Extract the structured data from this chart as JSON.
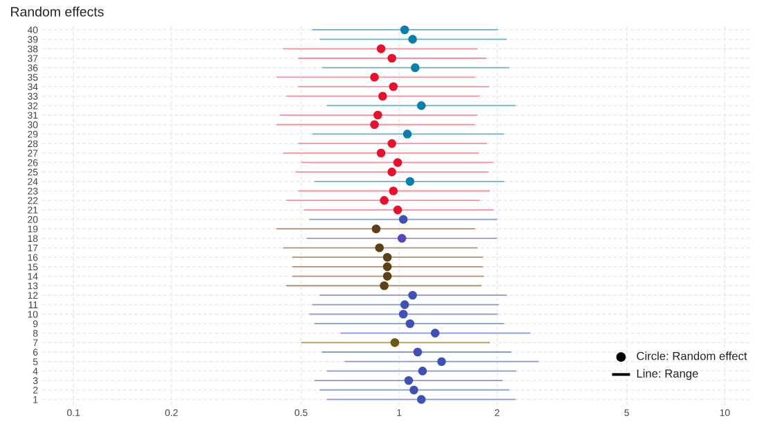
{
  "chart_data": {
    "type": "scatter",
    "title": "Random effects",
    "orientation": "horizontal",
    "log": "x",
    "grid": true,
    "annotations": [
      "Circle: Random effect",
      "Line: Range"
    ],
    "categories": [
      "40",
      "39",
      "38",
      "37",
      "36",
      "35",
      "34",
      "33",
      "32",
      "31",
      "30",
      "29",
      "28",
      "27",
      "26",
      "25",
      "24",
      "23",
      "22",
      "21",
      "20",
      "19",
      "18",
      "17",
      "16",
      "15",
      "14",
      "13",
      "12",
      "11",
      "10",
      "9",
      "8",
      "7",
      "6",
      "5",
      "4",
      "3",
      "2",
      "1"
    ],
    "xlim": [
      0.08,
      12
    ],
    "xticks": [
      0.1,
      0.2,
      0.5,
      1,
      2,
      5,
      10
    ],
    "series": [
      {
        "type": "bar",
        "base": [
          0.54,
          0.57,
          0.44,
          0.49,
          0.58,
          0.42,
          0.49,
          0.45,
          0.6,
          0.43,
          0.42,
          0.54,
          0.49,
          0.44,
          0.5,
          0.48,
          0.55,
          0.49,
          0.45,
          0.51,
          0.53,
          0.42,
          0.52,
          0.44,
          0.47,
          0.47,
          0.47,
          0.45,
          0.57,
          0.54,
          0.53,
          0.55,
          0.66,
          0.5,
          0.58,
          0.68,
          0.6,
          0.55,
          0.57,
          0.6
        ],
        "values": [
          1.47,
          1.57,
          1.3,
          1.36,
          1.6,
          1.29,
          1.4,
          1.32,
          1.68,
          1.31,
          1.29,
          1.56,
          1.37,
          1.32,
          1.45,
          1.4,
          1.55,
          1.41,
          1.32,
          1.44,
          1.47,
          1.29,
          1.48,
          1.3,
          1.34,
          1.34,
          1.35,
          1.34,
          1.57,
          1.48,
          1.48,
          1.55,
          1.87,
          1.4,
          1.63,
          2.0,
          1.69,
          1.53,
          1.61,
          1.68
        ],
        "colors": [
          "#69b3d1",
          "#69b3d1",
          "#ff8e9e",
          "#ff8e9e",
          "#69b3d1",
          "#ff8e9e",
          "#ff8e9e",
          "#ff8e9e",
          "#69b3d1",
          "#ff8e9e",
          "#ff8e9e",
          "#69b3d1",
          "#ff8e9e",
          "#ff8e9e",
          "#ff8e9e",
          "#ff8e9e",
          "#69b3d1",
          "#ff8e9e",
          "#ff8e9e",
          "#ff8e9e",
          "#8a96d6",
          "#b98d72",
          "#9f94d4",
          "#b98d72",
          "#b98d72",
          "#b98d72",
          "#b98d72",
          "#b98d72",
          "#8a96d6",
          "#8a96d6",
          "#8a96d6",
          "#8a96d6",
          "#8a96d6",
          "#a89a5c",
          "#8a96d6",
          "#8a96d6",
          "#8a96d6",
          "#8a96d6",
          "#8a96d6",
          "#8a96d6"
        ]
      },
      {
        "marker": "circle",
        "values": [
          1.04,
          1.1,
          0.88,
          0.95,
          1.12,
          0.84,
          0.96,
          0.89,
          1.17,
          0.86,
          0.84,
          1.06,
          0.95,
          0.88,
          0.99,
          0.95,
          1.08,
          0.96,
          0.9,
          0.99,
          1.03,
          0.85,
          1.02,
          0.87,
          0.92,
          0.92,
          0.92,
          0.9,
          1.1,
          1.04,
          1.03,
          1.08,
          1.29,
          0.97,
          1.14,
          1.35,
          1.18,
          1.07,
          1.11,
          1.17
        ],
        "colors": [
          "#0b7fab",
          "#0b7fab",
          "#e8112d",
          "#e8112d",
          "#0b7fab",
          "#e8112d",
          "#e8112d",
          "#e8112d",
          "#0b7fab",
          "#e8112d",
          "#e8112d",
          "#0b7fab",
          "#e8112d",
          "#e8112d",
          "#e8112d",
          "#e8112d",
          "#0b7fab",
          "#e8112d",
          "#e8112d",
          "#e8112d",
          "#3f51b5",
          "#5c4018",
          "#5b47b8",
          "#5c4018",
          "#5c4018",
          "#5c4018",
          "#5c4018",
          "#5c4018",
          "#3f51b5",
          "#3f51b5",
          "#3f51b5",
          "#3f51b5",
          "#3f51b5",
          "#6b5a14",
          "#3f51b5",
          "#3f51b5",
          "#3f51b5",
          "#3f51b5",
          "#3f51b5",
          "#3f51b5"
        ]
      }
    ]
  }
}
